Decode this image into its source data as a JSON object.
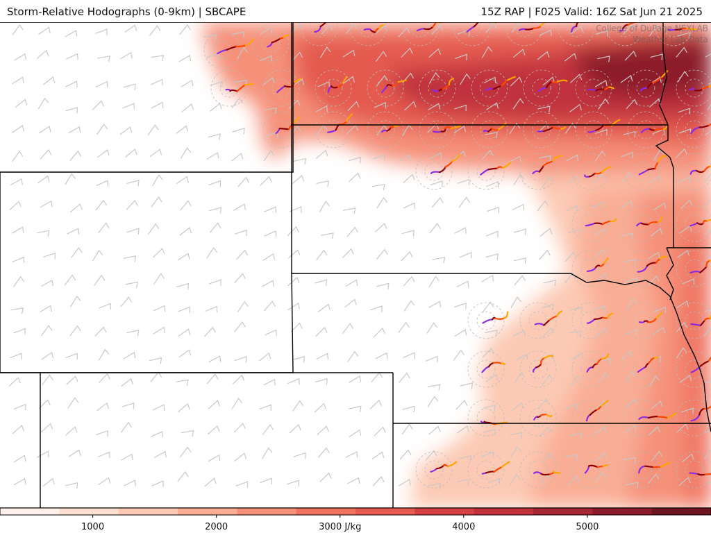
{
  "header": {
    "left_title": "Storm-Relative Hodographs (0-9km) | SBCAPE",
    "right_title": "15Z RAP | F025 Valid: 16Z Sat Jun 21 2025"
  },
  "credit": {
    "line1": "College of DuPage NEXLAB",
    "line2": "Weather Lab Data"
  },
  "colorbar": {
    "unit": "J/kg",
    "ticks": [
      {
        "value": 1000,
        "label": "1000"
      },
      {
        "value": 2000,
        "label": "2000"
      },
      {
        "value": 3000,
        "label": "3000 J/kg"
      },
      {
        "value": 4000,
        "label": "4000"
      },
      {
        "value": 5000,
        "label": "5000"
      }
    ],
    "range": [
      250,
      6000
    ],
    "colors": [
      "#fff0ea",
      "#fde0d2",
      "#fcc9b4",
      "#f9ad95",
      "#f59079",
      "#ef7361",
      "#e45a50",
      "#d43f43",
      "#c0313c",
      "#a62634",
      "#8c1c2c",
      "#6f1422"
    ]
  },
  "colors": {
    "state_border": "#000000",
    "wind_barb": "#c8c8c8",
    "hodo_0_3km": "#8b0000",
    "hodo_3_6km": "#ff4500",
    "hodo_6_9km": "#ffa500",
    "hodo_low": "#8a2be2"
  }
}
